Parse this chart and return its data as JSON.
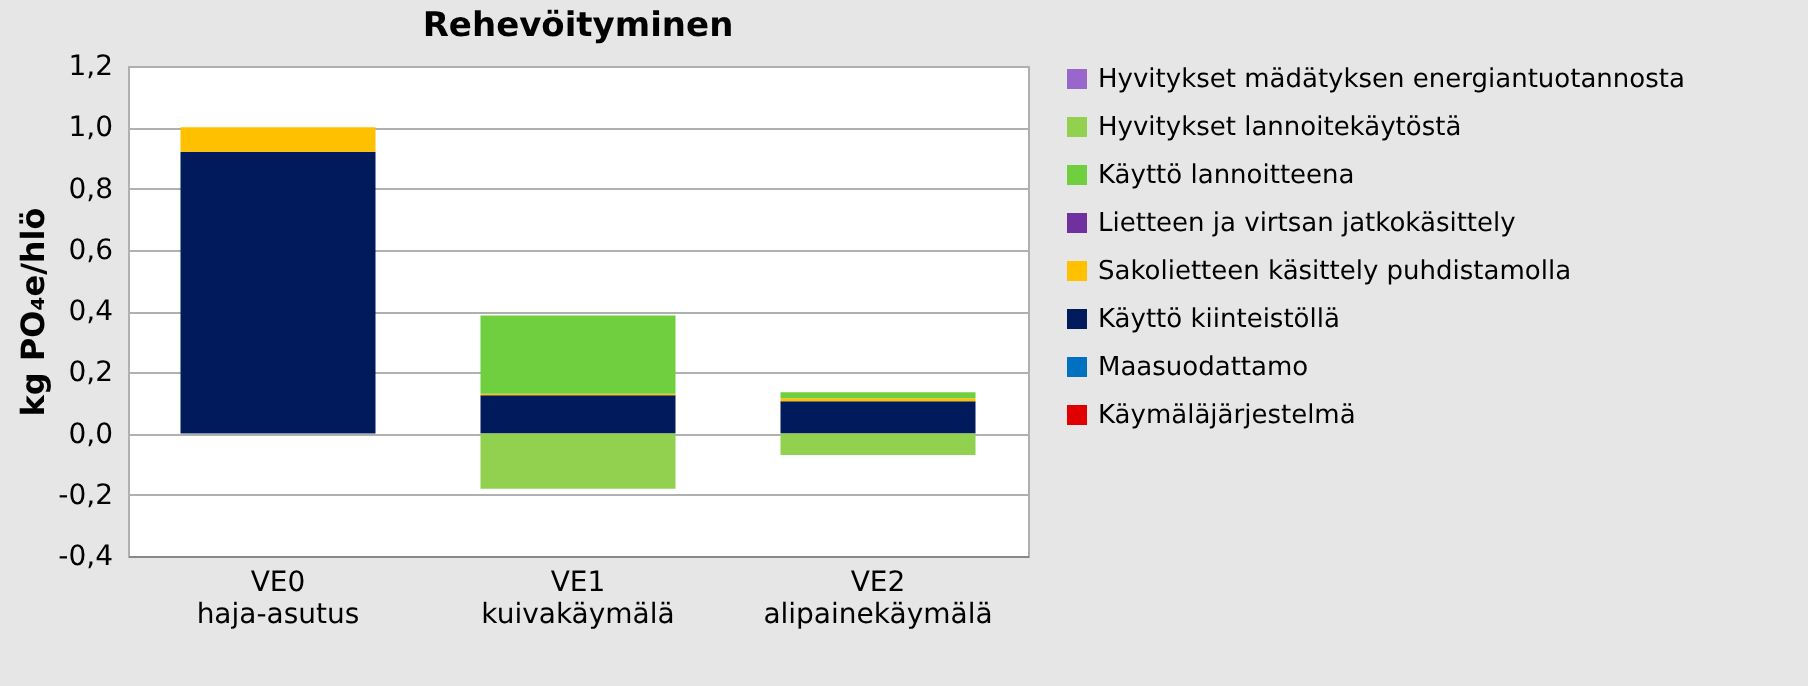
{
  "chart_data": {
    "type": "bar",
    "title": "Rehevöityminen",
    "ylabel": "kg PO₄e/hlö",
    "categories": [
      "VE0\nhaja-asutus",
      "VE1\nkuivakäymälä",
      "VE2\nalipainekäymälä"
    ],
    "stacked": true,
    "grid": "y",
    "legend": "right",
    "ylim": [
      -0.4,
      1.2
    ],
    "yticks": [
      {
        "value": -0.4,
        "label": "-0,4"
      },
      {
        "value": -0.2,
        "label": "-0,2"
      },
      {
        "value": 0,
        "label": "0,0"
      },
      {
        "value": 0.2,
        "label": "0,2"
      },
      {
        "value": 0.4,
        "label": "0,4"
      },
      {
        "value": 0.6,
        "label": "0,6"
      },
      {
        "value": 0.8,
        "label": "0,8"
      },
      {
        "value": 1.0,
        "label": "1,0"
      },
      {
        "value": 1.2,
        "label": "1,2"
      }
    ],
    "series": [
      {
        "name": "Käymäläjärjestelmä",
        "color": "#e00000",
        "values": [
          0,
          0,
          0
        ]
      },
      {
        "name": "Maasuodattamo",
        "color": "#0070c0",
        "values": [
          0,
          0,
          0
        ]
      },
      {
        "name": "Käyttö kiinteistöllä",
        "color": "#001a5c",
        "values": [
          0.92,
          0.125,
          0.105
        ]
      },
      {
        "name": "Sakolietteen käsittely puhdistamolla",
        "color": "#ffc000",
        "values": [
          0.08,
          0.005,
          0.01
        ]
      },
      {
        "name": "Lietteen ja virtsan jatkokäsittely",
        "color": "#7030a0",
        "values": [
          0,
          0,
          0
        ]
      },
      {
        "name": "Käyttö lannoitteena",
        "color": "#6fcf3f",
        "values": [
          0,
          0.255,
          0.02
        ]
      },
      {
        "name": "Hyvitykset lannoitekäytöstä",
        "color": "#92d050",
        "values": [
          0,
          -0.18,
          -0.07
        ]
      },
      {
        "name": "Hyvitykset mädätyksen energiantuotannosta",
        "color": "#9966cc",
        "values": [
          0,
          0,
          0
        ]
      }
    ]
  }
}
